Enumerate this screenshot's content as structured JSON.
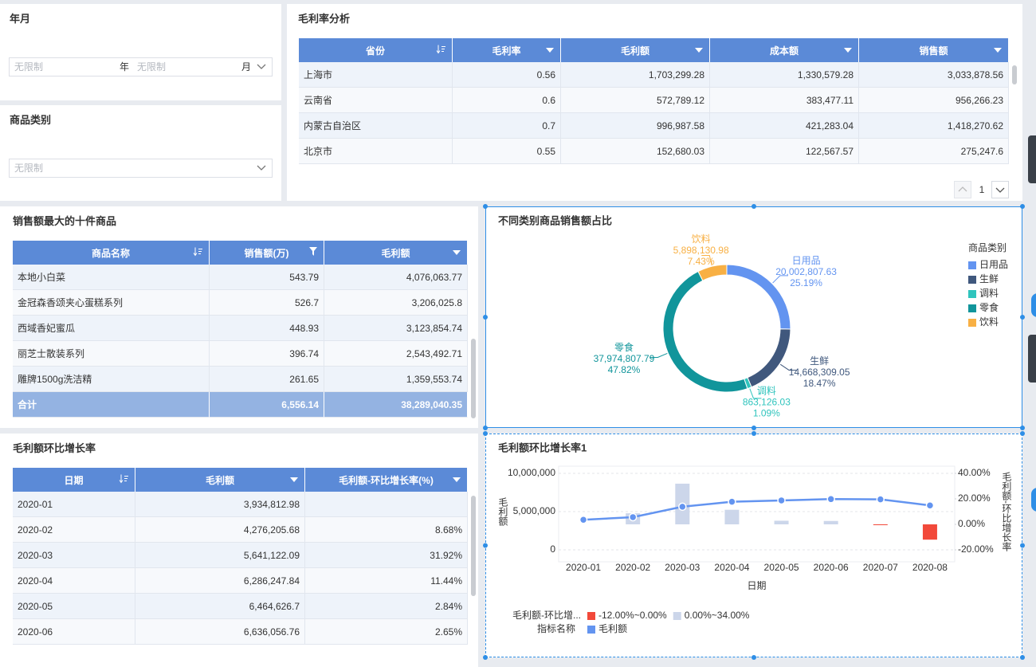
{
  "filters": {
    "year_month": {
      "title": "年月",
      "year_placeholder": "无限制",
      "year_unit": "年",
      "month_placeholder": "无限制",
      "month_unit": "月"
    },
    "category": {
      "title": "商品类别",
      "placeholder": "无限制"
    }
  },
  "gross_margin_table": {
    "title": "毛利率分析",
    "columns": [
      "省份",
      "毛利率",
      "毛利额",
      "成本额",
      "销售额"
    ],
    "rows": [
      [
        "上海市",
        "0.56",
        "1,703,299.28",
        "1,330,579.28",
        "3,033,878.56"
      ],
      [
        "云南省",
        "0.6",
        "572,789.12",
        "383,477.11",
        "956,266.23"
      ],
      [
        "内蒙古自治区",
        "0.7",
        "996,987.58",
        "421,283.04",
        "1,418,270.62"
      ],
      [
        "北京市",
        "0.55",
        "152,680.03",
        "122,567.57",
        "275,247.6"
      ]
    ],
    "page": 1
  },
  "top_products_table": {
    "title": "销售额最大的十件商品",
    "columns": [
      "商品名称",
      "销售额(万)",
      "毛利额"
    ],
    "rows": [
      [
        "本地小白菜",
        "543.79",
        "4,076,063.77"
      ],
      [
        "金冠森香颂夹心蛋糕系列",
        "526.7",
        "3,206,025.8"
      ],
      [
        "西域香妃蜜瓜",
        "448.93",
        "3,123,854.74"
      ],
      [
        "丽芝士散装系列",
        "396.74",
        "2,543,492.71"
      ],
      [
        "雕牌1500g洗洁精",
        "261.65",
        "1,359,553.74"
      ]
    ],
    "total": [
      "合计",
      "6,556.14",
      "38,289,040.35"
    ]
  },
  "monthly_table": {
    "title": "毛利额环比增长率",
    "columns": [
      "日期",
      "毛利额",
      "毛利额-环比增长率(%)"
    ],
    "rows": [
      [
        "2020-01",
        "3,934,812.98",
        null
      ],
      [
        "2020-02",
        "4,276,205.68",
        "8.68%"
      ],
      [
        "2020-03",
        "5,641,122.09",
        "31.92%"
      ],
      [
        "2020-04",
        "6,286,247.84",
        "11.44%"
      ],
      [
        "2020-05",
        "6,464,626.7",
        "2.84%"
      ],
      [
        "2020-06",
        "6,636,056.76",
        "2.65%"
      ]
    ]
  },
  "chart_data": [
    {
      "type": "pie",
      "title": "不同类别商品销售额占比",
      "legend_title": "商品类别",
      "categories": [
        "日用品",
        "生鲜",
        "调料",
        "零食",
        "饮料"
      ],
      "values": [
        20002807.63,
        14668309.05,
        863126.03,
        37974807.79,
        5898130.98
      ],
      "value_labels": [
        "20,002,807.63",
        "14,668,309.05",
        "863,126.03",
        "37,974,807.79",
        "5,898,130.98"
      ],
      "shares": [
        25.19,
        18.47,
        1.09,
        47.82,
        7.43
      ],
      "share_labels": [
        "25.19%",
        "18.47%",
        "1.09%",
        "47.82%",
        "7.43%"
      ],
      "colors": [
        "#6394f0",
        "#40587d",
        "#2fc4bd",
        "#11959b",
        "#f8b044"
      ]
    },
    {
      "type": "bar-line",
      "title": "毛利额环比增长率1",
      "x_label": "日期",
      "y_label": "毛利额",
      "y2_label": "毛利额-环比增长率",
      "categories": [
        "2020-01",
        "2020-02",
        "2020-03",
        "2020-04",
        "2020-05",
        "2020-06",
        "2020-07",
        "2020-08"
      ],
      "series": [
        {
          "type": "bar",
          "axis": "y2",
          "values": [
            null,
            8.68,
            31.92,
            11.44,
            2.84,
            2.65,
            -0.5,
            -12
          ]
        },
        {
          "name": "毛利额",
          "type": "line",
          "color": "#6394f0",
          "values": [
            3934812.98,
            4276205.68,
            5641122.09,
            6286247.84,
            6464626.7,
            6636056.76,
            6600000,
            5810000
          ]
        }
      ],
      "ylim": [
        0,
        10000000
      ],
      "yticks": [
        0,
        {
          "value": 5000000,
          "label": "5,000,000"
        },
        {
          "value": 10000000,
          "label": "10,000,000"
        }
      ],
      "y2lim": [
        -20,
        40
      ],
      "y2ticks": [
        {
          "value": -20,
          "label": "-20.00%"
        },
        {
          "value": 0,
          "label": "0.00%"
        },
        {
          "value": 20,
          "label": "20.00%"
        },
        {
          "value": 40,
          "label": "40.00%"
        }
      ],
      "visual_map": {
        "name": "毛利额-环比增...",
        "pieces": [
          {
            "min": -12,
            "max": 0,
            "label": "-12.00%~0.00%",
            "color": "#f2493a"
          },
          {
            "min": 0,
            "max": 34,
            "label": "0.00%~34.00%",
            "color": "#ccd6ea"
          }
        ]
      },
      "legend_title": "指标名称",
      "grid": true
    }
  ]
}
